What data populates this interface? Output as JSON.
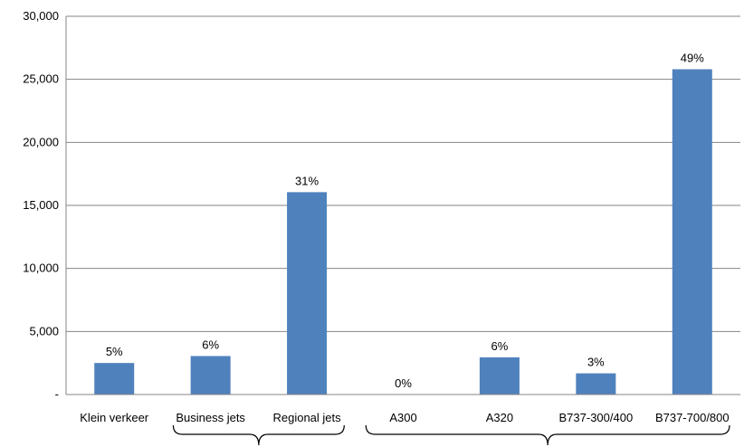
{
  "chart_data": {
    "type": "bar",
    "categories": [
      "Klein verkeer",
      "Business jets",
      "Regional jets",
      "A300",
      "A320",
      "B737-300/400",
      "B737-700/800"
    ],
    "values": [
      2500,
      3050,
      16050,
      0,
      2950,
      1680,
      25800
    ],
    "data_labels": [
      "5%",
      "6%",
      "31%",
      "0%",
      "6%",
      "3%",
      "49%"
    ],
    "y_ticks": [
      {
        "value": 0,
        "label": "-"
      },
      {
        "value": 5000,
        "label": "5,000"
      },
      {
        "value": 10000,
        "label": "10,000"
      },
      {
        "value": 15000,
        "label": "15,000"
      },
      {
        "value": 20000,
        "label": "20,000"
      },
      {
        "value": 25000,
        "label": "25,000"
      },
      {
        "value": 30000,
        "label": "30,000"
      }
    ],
    "ylim": [
      0,
      30000
    ],
    "grid": true,
    "bar_color": "#4F81BD",
    "grid_color": "#868686",
    "groups": [
      {
        "from": 1,
        "to": 2
      },
      {
        "from": 3,
        "to": 6
      }
    ]
  }
}
